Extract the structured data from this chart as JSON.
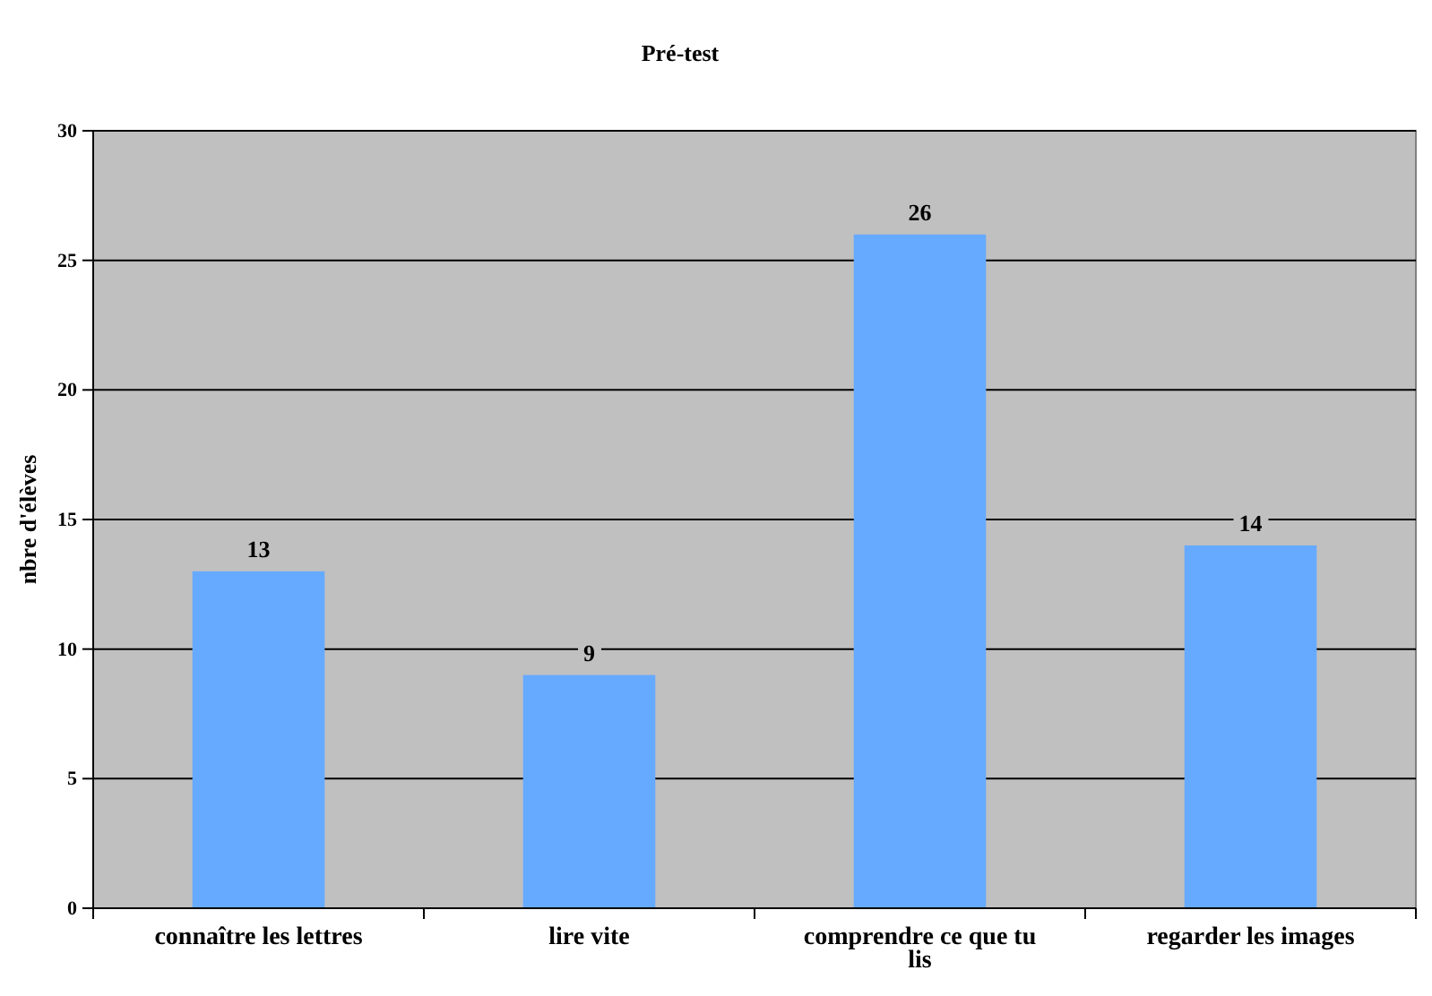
{
  "chart_data": {
    "type": "bar",
    "title": "Pré-test",
    "ylabel": "nbre d'élèves",
    "categories": [
      "connaître les lettres",
      "lire vite",
      "comprendre ce que tu lis",
      "regarder les images"
    ],
    "values": [
      13,
      9,
      26,
      14
    ],
    "color": "#66aaff",
    "ylim": [
      0,
      30
    ],
    "yticks": [
      0,
      5,
      10,
      15,
      20,
      25,
      30
    ],
    "grid": "y",
    "data_labels": true
  }
}
